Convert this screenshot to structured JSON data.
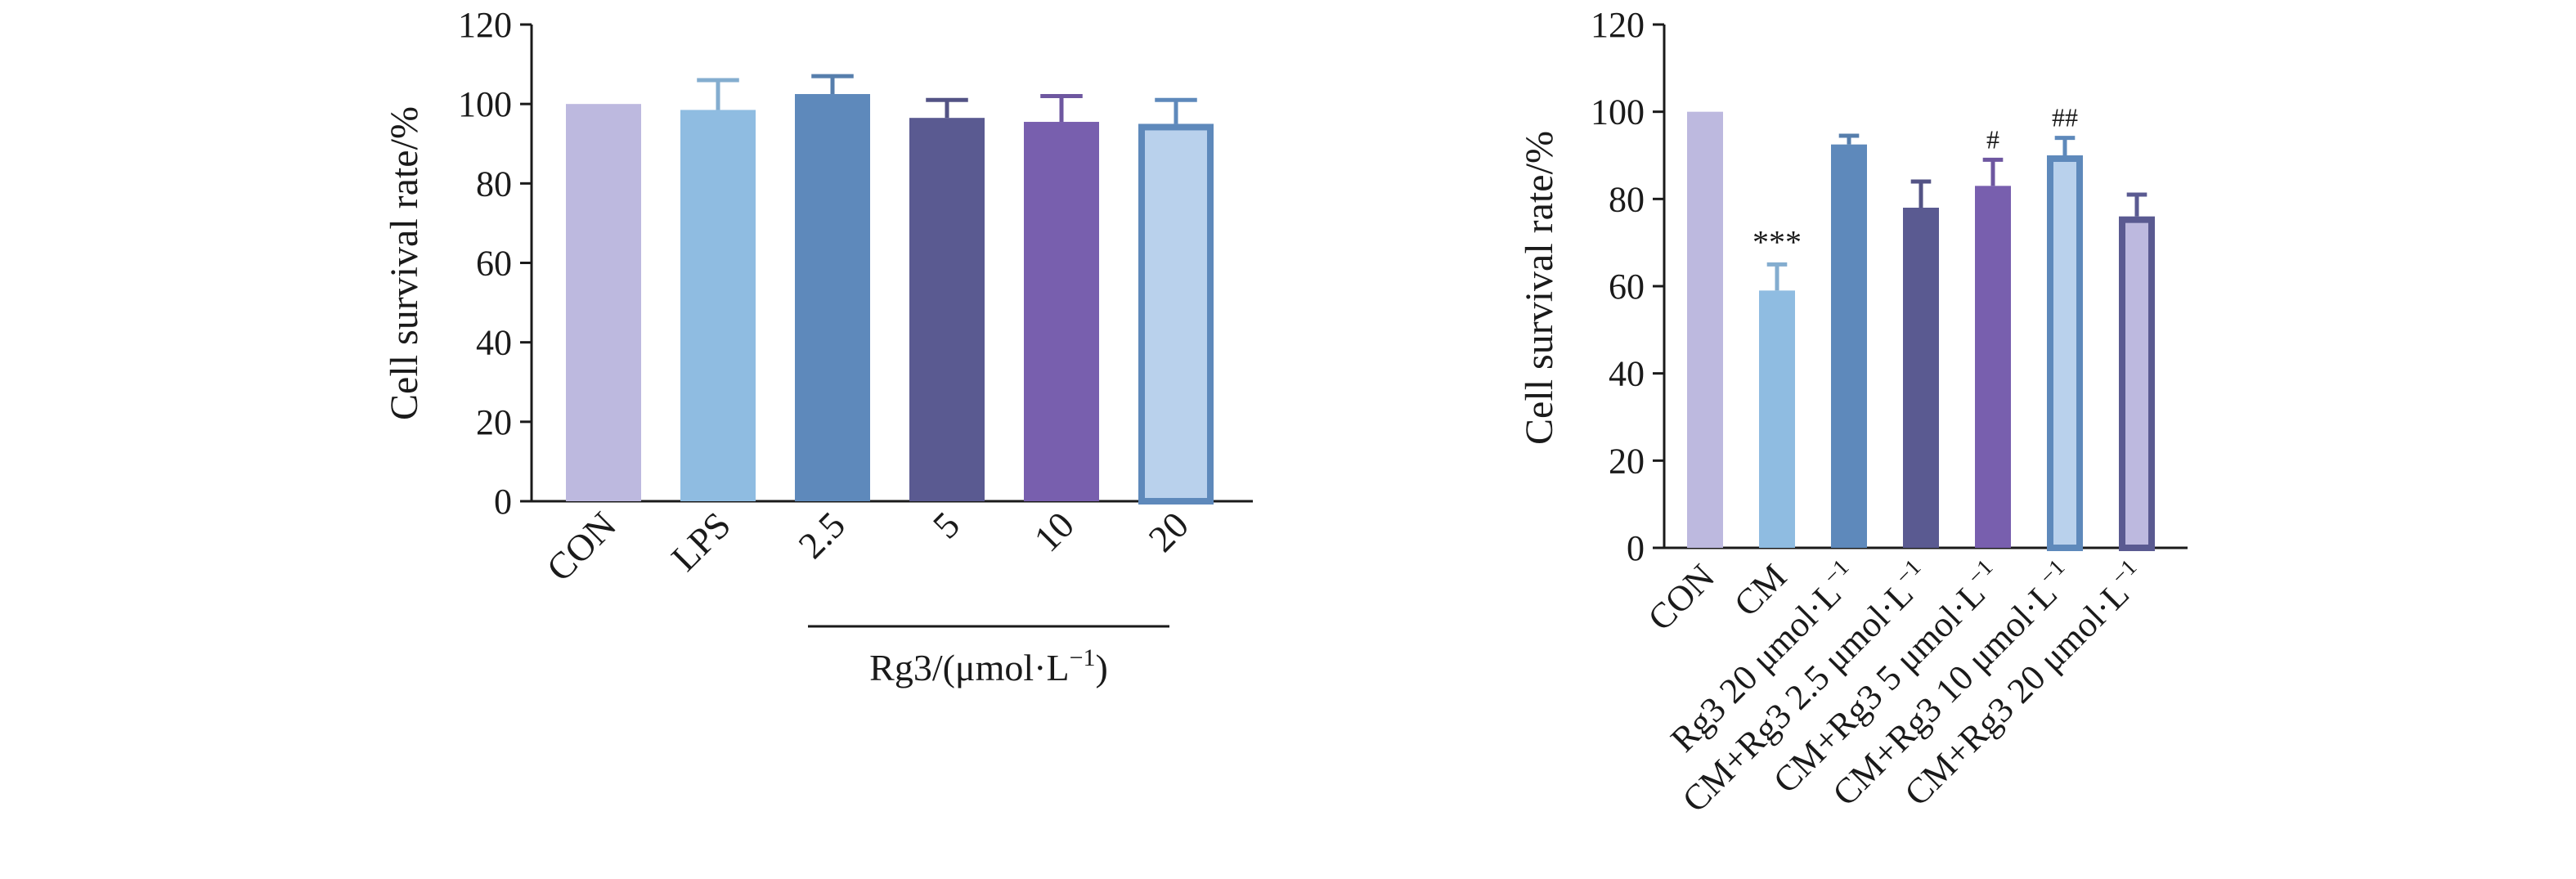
{
  "chart_data": [
    {
      "type": "bar",
      "ylabel": "Cell survival rate/%",
      "ylim": [
        0,
        120
      ],
      "yticks": [
        0,
        20,
        40,
        60,
        80,
        100,
        120
      ],
      "categories": [
        "CON",
        "LPS",
        "2.5",
        "5",
        "10",
        "20"
      ],
      "values": [
        100,
        98.5,
        102.5,
        96.5,
        95.5,
        95
      ],
      "error_plus": [
        0,
        7.5,
        4.5,
        4.5,
        6.5,
        6
      ],
      "group_label": {
        "text": "Rg3/(μmol·L",
        "sup": "−1",
        "suffix": ")",
        "applies_to": [
          "2.5",
          "5",
          "10",
          "20"
        ]
      },
      "colors": [
        "#bdb9df",
        "#8fbce1",
        "#5e89bb",
        "#5a5a91",
        "#785fae",
        "#b9d1ec"
      ],
      "outline_colors": [
        null,
        null,
        null,
        null,
        null,
        "#5e89bb"
      ],
      "annotations": [
        "",
        "",
        "",
        "",
        "",
        ""
      ]
    },
    {
      "type": "bar",
      "ylabel": "Cell survival rate/%",
      "ylim": [
        0,
        120
      ],
      "yticks": [
        0,
        20,
        40,
        60,
        80,
        100,
        120
      ],
      "categories": [
        "CON",
        "CM",
        "Rg3 20 μmol·L−1",
        "CM+Rg3 2.5 μmol·L−1",
        "CM+Rg3 5 μmol·L−1",
        "CM+Rg3 10 μmol·L−1",
        "CM+Rg3 20 μmol·L−1"
      ],
      "category_parts": [
        {
          "text": "CON",
          "sup": ""
        },
        {
          "text": "CM",
          "sup": ""
        },
        {
          "text": "Rg3 20 μmol·L",
          "sup": "−1"
        },
        {
          "text": "CM+Rg3 2.5 μmol·L",
          "sup": "−1"
        },
        {
          "text": "CM+Rg3 5 μmol·L",
          "sup": "−1"
        },
        {
          "text": "CM+Rg3 10 μmol·L",
          "sup": "−1"
        },
        {
          "text": "CM+Rg3 20 μmol·L",
          "sup": "−1"
        }
      ],
      "values": [
        100,
        59,
        92.5,
        78,
        83,
        90,
        76
      ],
      "error_plus": [
        0,
        6,
        2,
        6,
        6,
        4,
        5
      ],
      "colors": [
        "#bdb9df",
        "#8fbce1",
        "#5e89bb",
        "#5a5a91",
        "#785fae",
        "#b9d1ec",
        "#bdb9df"
      ],
      "outline_colors": [
        null,
        null,
        null,
        null,
        null,
        "#5e89bb",
        "#5a5a91"
      ],
      "annotations": [
        "",
        "***",
        "",
        "",
        "#",
        "##",
        ""
      ]
    }
  ]
}
